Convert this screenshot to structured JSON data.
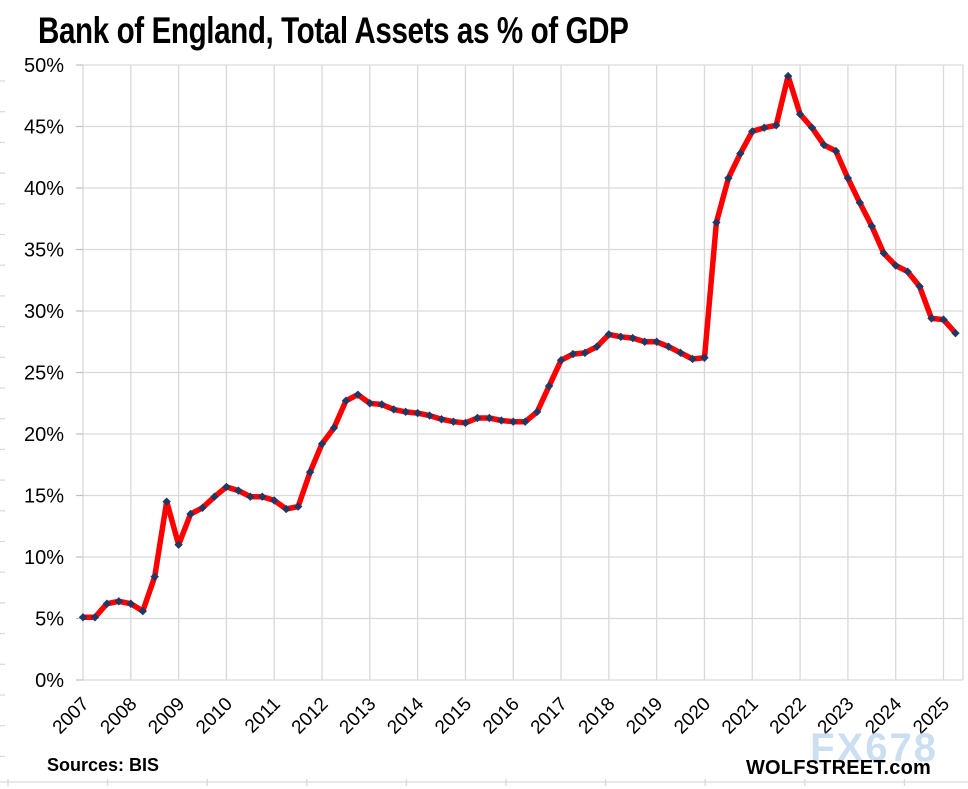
{
  "title": "Bank of England, Total Assets as % of GDP",
  "footer": {
    "sources": "Sources: BIS",
    "brand": "WOLFSTREET.com",
    "watermark": "FX678"
  },
  "colors": {
    "line": "#FE0000",
    "marker": "#1F3864",
    "grid": "#D9D9D9",
    "tick": "#BFBFBF",
    "sheet": "#D9D9D9",
    "axis_text": "#000000",
    "watermark": "#BDD7EE"
  },
  "chart_data": {
    "type": "line",
    "title": "Bank of England, Total Assets as % of GDP",
    "xlabel": "",
    "ylabel": "Total assets as % of GDP",
    "ylim": [
      0,
      50
    ],
    "y_tick_labels": [
      "0%",
      "5%",
      "10%",
      "15%",
      "20%",
      "25%",
      "30%",
      "35%",
      "40%",
      "45%",
      "50%"
    ],
    "x_tick_labels": [
      "2007",
      "2008",
      "2009",
      "2010",
      "2011",
      "2012",
      "2013",
      "2014",
      "2015",
      "2016",
      "2017",
      "2018",
      "2019",
      "2020",
      "2021",
      "2022",
      "2023",
      "2024",
      "2025"
    ],
    "frequency": "quarterly",
    "x_start": "2007-Q1",
    "x_end": "2025-Q2",
    "grid": "on",
    "legend": "none",
    "series": [
      {
        "name": "Bank of England total assets as % of GDP",
        "values": [
          5.1,
          5.1,
          6.2,
          6.4,
          6.2,
          5.6,
          8.4,
          14.5,
          11.0,
          13.5,
          14.0,
          14.9,
          15.7,
          15.4,
          14.9,
          14.9,
          14.6,
          13.9,
          14.1,
          16.9,
          19.2,
          20.5,
          22.7,
          23.2,
          22.5,
          22.4,
          22.0,
          21.8,
          21.7,
          21.5,
          21.2,
          21.0,
          20.9,
          21.3,
          21.3,
          21.1,
          21.0,
          21.0,
          21.8,
          23.9,
          26.0,
          26.5,
          26.6,
          27.1,
          28.1,
          27.9,
          27.8,
          27.5,
          27.5,
          27.1,
          26.6,
          26.1,
          26.2,
          37.2,
          40.8,
          42.8,
          44.6,
          44.9,
          45.1,
          49.1,
          46.0,
          44.9,
          43.5,
          43.0,
          40.8,
          38.8,
          36.9,
          34.7,
          33.7,
          33.2,
          32.0,
          29.4,
          29.3,
          28.2
        ]
      }
    ]
  }
}
